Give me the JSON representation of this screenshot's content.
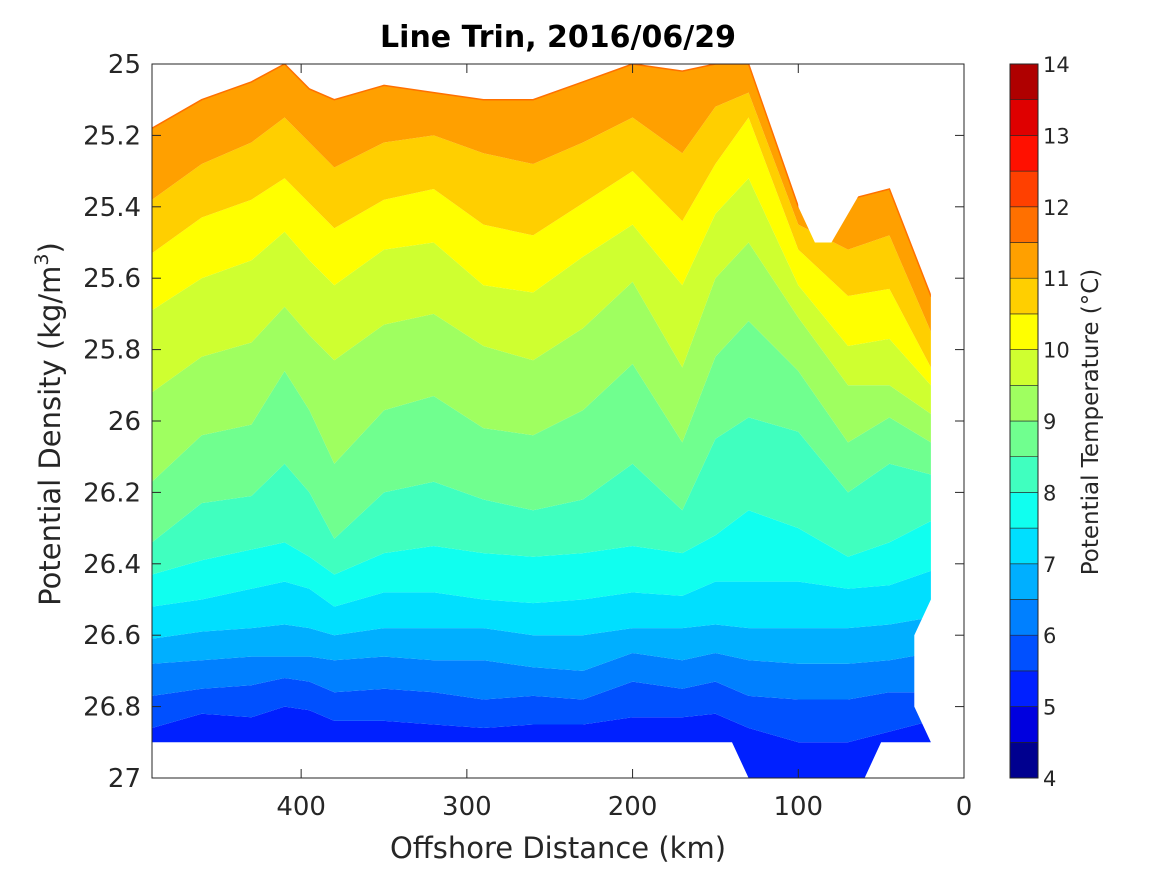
{
  "chart_data": {
    "type": "filled-contour",
    "title": "Line Trin, 2016/06/29",
    "xlabel": "Offshore Distance (km)",
    "ylabel": "Potential Density (kg/m",
    "ylabel_sup": "3",
    "ylabel_close": ")",
    "colorbar_label": "Potential Temperature (°C)",
    "xlim": [
      490,
      0
    ],
    "ylim": [
      25,
      27
    ],
    "y_reversed": true,
    "x_ticks": [
      400,
      300,
      200,
      100,
      0
    ],
    "y_ticks": [
      25,
      25.2,
      25.4,
      25.6,
      25.8,
      26,
      26.2,
      26.4,
      26.6,
      26.8,
      27
    ],
    "y_tick_labels": [
      "25",
      "25.2",
      "25.4",
      "25.6",
      "25.8",
      "26",
      "26.2",
      "26.4",
      "26.6",
      "26.8",
      "27"
    ],
    "colorbar_range": [
      4,
      14
    ],
    "colorbar_ticks": [
      4,
      5,
      6,
      7,
      8,
      9,
      10,
      11,
      12,
      13,
      14
    ],
    "contour_step": 0.5,
    "level_colors": [
      "#00008f",
      "#0000df",
      "#0020ff",
      "#0050ff",
      "#0080ff",
      "#00afff",
      "#00dfff",
      "#10ffef",
      "#40ffbf",
      "#70ff8f",
      "#9fff60",
      "#cfff30",
      "#ffff00",
      "#ffcf00",
      "#ffa000",
      "#ff7000",
      "#ff4000",
      "#ff1000",
      "#df0000",
      "#af0000"
    ],
    "sections": [
      {
        "x": 490,
        "isopycnals": [
          25.18,
          25.38,
          25.53,
          25.69,
          25.92,
          26.17,
          26.34,
          26.43,
          26.52,
          26.61,
          26.68,
          26.77,
          26.86
        ],
        "top_class": 15
      },
      {
        "x": 460,
        "isopycnals": [
          25.1,
          25.28,
          25.43,
          25.6,
          25.82,
          26.04,
          26.23,
          26.39,
          26.5,
          26.59,
          26.67,
          26.75,
          26.82
        ],
        "top_class": 15
      },
      {
        "x": 430,
        "isopycnals": [
          25.05,
          25.22,
          25.38,
          25.55,
          25.78,
          26.01,
          26.21,
          26.36,
          26.47,
          26.58,
          26.66,
          26.74,
          26.83
        ],
        "top_class": 15
      },
      {
        "x": 410,
        "isopycnals": [
          25.0,
          25.15,
          25.32,
          25.47,
          25.68,
          25.86,
          26.12,
          26.34,
          26.45,
          26.57,
          26.66,
          26.72,
          26.8
        ],
        "top_class": 15
      },
      {
        "x": 395,
        "isopycnals": [
          25.07,
          25.22,
          25.39,
          25.55,
          25.76,
          25.97,
          26.2,
          26.38,
          26.47,
          26.58,
          26.66,
          26.73,
          26.81
        ],
        "top_class": 15
      },
      {
        "x": 380,
        "isopycnals": [
          25.1,
          25.29,
          25.46,
          25.62,
          25.83,
          26.12,
          26.33,
          26.43,
          26.52,
          26.6,
          26.67,
          26.76,
          26.84
        ],
        "top_class": 15
      },
      {
        "x": 350,
        "isopycnals": [
          25.06,
          25.22,
          25.38,
          25.52,
          25.73,
          25.97,
          26.2,
          26.37,
          26.48,
          26.58,
          26.66,
          26.75,
          26.84
        ],
        "top_class": 15
      },
      {
        "x": 320,
        "isopycnals": [
          25.08,
          25.2,
          25.35,
          25.5,
          25.7,
          25.93,
          26.17,
          26.35,
          26.48,
          26.58,
          26.67,
          26.76,
          26.85
        ],
        "top_class": 15
      },
      {
        "x": 290,
        "isopycnals": [
          25.1,
          25.25,
          25.45,
          25.62,
          25.79,
          26.02,
          26.22,
          26.37,
          26.5,
          26.58,
          26.67,
          26.78,
          26.86
        ],
        "top_class": 14
      },
      {
        "x": 260,
        "isopycnals": [
          25.1,
          25.28,
          25.48,
          25.64,
          25.83,
          26.04,
          26.25,
          26.38,
          26.51,
          26.6,
          26.69,
          26.77,
          26.85
        ],
        "top_class": 14
      },
      {
        "x": 230,
        "isopycnals": [
          25.05,
          25.22,
          25.39,
          25.54,
          25.74,
          25.97,
          26.22,
          26.37,
          26.5,
          26.6,
          26.7,
          26.78,
          26.85
        ],
        "top_class": 14
      },
      {
        "x": 200,
        "isopycnals": [
          25.0,
          25.15,
          25.3,
          25.45,
          25.61,
          25.84,
          26.12,
          26.35,
          26.48,
          26.58,
          26.65,
          26.73,
          26.83
        ],
        "top_class": 14
      },
      {
        "x": 170,
        "isopycnals": [
          25.02,
          25.25,
          25.44,
          25.62,
          25.85,
          26.06,
          26.25,
          26.37,
          26.49,
          26.58,
          26.67,
          26.75,
          26.83
        ],
        "top_class": 14
      },
      {
        "x": 150,
        "isopycnals": [
          25.0,
          25.12,
          25.28,
          25.42,
          25.6,
          25.82,
          26.05,
          26.32,
          26.45,
          26.57,
          26.65,
          26.73,
          26.82
        ],
        "top_class": 14
      },
      {
        "x": 130,
        "isopycnals": [
          25.0,
          25.08,
          25.15,
          25.32,
          25.5,
          25.72,
          25.99,
          26.25,
          26.45,
          26.58,
          26.67,
          26.77,
          26.86
        ],
        "top_class": 15
      },
      {
        "x": 100,
        "isopycnals": [
          25.4,
          25.45,
          25.52,
          25.62,
          25.71,
          25.86,
          26.03,
          26.3,
          26.45,
          26.58,
          26.68,
          26.78,
          26.9
        ],
        "top_class": 16
      },
      {
        "x": 70,
        "isopycnals": [
          25.38,
          25.52,
          25.65,
          25.79,
          25.9,
          26.06,
          26.2,
          26.38,
          26.47,
          26.58,
          26.68,
          26.78,
          26.9
        ],
        "top_class": 16
      },
      {
        "x": 45,
        "isopycnals": [
          25.35,
          25.48,
          25.63,
          25.77,
          25.9,
          25.99,
          26.12,
          26.34,
          26.46,
          26.57,
          26.67,
          26.76,
          26.87
        ],
        "top_class": 16
      },
      {
        "x": 20,
        "isopycnals": [
          25.65,
          25.75,
          25.85,
          25.9,
          25.98,
          26.06,
          26.15,
          26.28,
          26.42,
          26.55,
          26.65,
          26.76,
          26.84
        ],
        "top_class": 16
      }
    ],
    "data_boundary": [
      [
        490,
        25
      ],
      [
        111,
        25
      ],
      [
        111,
        25.2
      ],
      [
        100,
        25.3
      ],
      [
        100,
        25.4
      ],
      [
        90,
        25.5
      ],
      [
        80,
        25.5
      ],
      [
        55,
        25.3
      ],
      [
        45,
        25.3
      ],
      [
        35,
        25.4
      ],
      [
        25,
        25.4
      ],
      [
        20,
        25.5
      ],
      [
        20,
        26.5
      ],
      [
        30,
        26.6
      ],
      [
        30,
        26.8
      ],
      [
        20,
        26.9
      ],
      [
        50,
        26.9
      ],
      [
        60,
        27
      ],
      [
        130,
        27
      ],
      [
        140,
        26.9
      ],
      [
        490,
        26.9
      ]
    ]
  }
}
